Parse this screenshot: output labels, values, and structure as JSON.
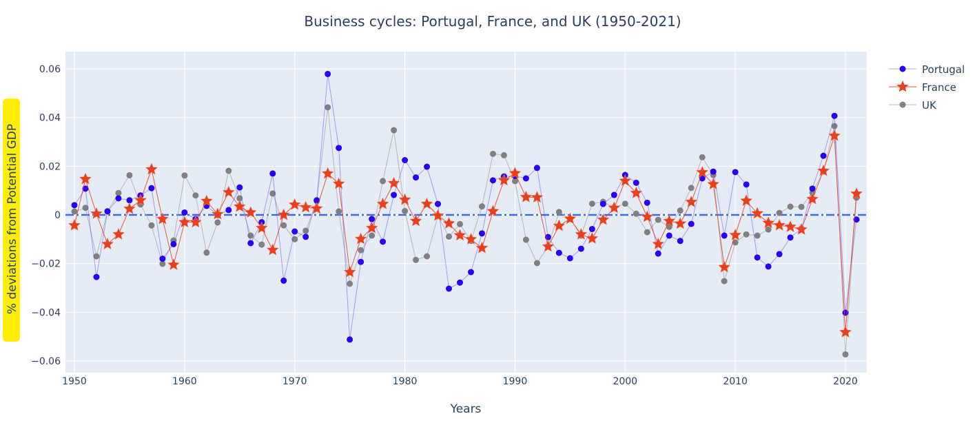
{
  "chart_data": {
    "type": "line",
    "title": "Business cycles: Portugal, France, and UK (1950-2021)",
    "xlabel": "Years",
    "ylabel": "% deviations from Potential GDP",
    "xlim": [
      1949.2,
      2021.8
    ],
    "ylim": [
      -0.065,
      0.066
    ],
    "xticks": [
      1950,
      1960,
      1970,
      1980,
      1990,
      2000,
      2010,
      2020
    ],
    "yticks": [
      -0.06,
      -0.04,
      -0.02,
      0,
      0.02,
      0.04,
      0.06
    ],
    "ytick_labels": [
      "−0.06",
      "−0.04",
      "−0.02",
      "0",
      "0.02",
      "0.04",
      "0.06"
    ],
    "grid": true,
    "legend_position": "top-right, outside",
    "reference_line": {
      "y": 0,
      "style": "dash-dot",
      "color": "#4169E1"
    },
    "x_start": 1950,
    "series": [
      {
        "name": "Portugal",
        "marker": "circle",
        "color": "#2a00f5",
        "line_color": "rgba(80,60,255,0.45)",
        "values": [
          0.004,
          0.0108,
          -0.0255,
          0.0015,
          0.0068,
          0.006,
          0.008,
          0.011,
          -0.018,
          -0.012,
          0.001,
          -0.0017,
          0.0037,
          0,
          0.002,
          0.0113,
          -0.0116,
          -0.003,
          0.017,
          -0.027,
          -0.0068,
          -0.009,
          0.006,
          0.0579,
          0.0275,
          -0.0512,
          -0.0193,
          -0.0017,
          -0.011,
          0.0082,
          0.0225,
          0.0154,
          0.0198,
          0.0045,
          -0.0303,
          -0.0278,
          -0.0235,
          -0.0076,
          0.0142,
          0.0158,
          0.016,
          0.015,
          0.0193,
          -0.0091,
          -0.0156,
          -0.0178,
          -0.0139,
          -0.0058,
          0.0045,
          0.0082,
          0.0164,
          0.0132,
          0.005,
          -0.0159,
          -0.0085,
          -0.0107,
          -0.0037,
          0.015,
          0.0178,
          -0.0085,
          0.0176,
          0.0125,
          -0.0175,
          -0.0212,
          -0.0161,
          -0.0093,
          -0.0057,
          0.0108,
          0.0243,
          0.0407,
          -0.0402,
          -0.0019
        ]
      },
      {
        "name": "France",
        "marker": "star",
        "color": "#e8401c",
        "line_color": "rgba(232,64,28,0.85)",
        "values": [
          -0.0043,
          0.0147,
          0.0005,
          -0.012,
          -0.008,
          0.0025,
          0.006,
          0.0187,
          -0.0017,
          -0.0205,
          -0.003,
          -0.003,
          0.0057,
          0.0003,
          0.0093,
          0.0034,
          0.001,
          -0.0054,
          -0.0144,
          0,
          0.0042,
          0.0031,
          0.0026,
          0.017,
          0.0128,
          -0.0235,
          -0.0099,
          -0.0054,
          0.0045,
          0.013,
          0.0062,
          -0.0025,
          0.0045,
          -0.0003,
          -0.0035,
          -0.0084,
          -0.01,
          -0.0136,
          0.0015,
          0.0142,
          0.0171,
          0.0073,
          0.0072,
          -0.013,
          -0.0045,
          -0.0016,
          -0.008,
          -0.0097,
          -0.002,
          0.0029,
          0.014,
          0.009,
          -0.0008,
          -0.012,
          -0.0025,
          -0.0036,
          0.0053,
          0.0175,
          0.0126,
          -0.0215,
          -0.0083,
          0.0058,
          0.0006,
          -0.0033,
          -0.0043,
          -0.0049,
          -0.006,
          0.0065,
          0.0181,
          0.0325,
          -0.0482,
          0.0087
        ]
      },
      {
        "name": "UK",
        "marker": "circle",
        "color": "#808080",
        "line_color": "rgba(170,170,170,0.8)",
        "values": [
          0.0014,
          0.0029,
          -0.017,
          0.0014,
          0.009,
          0.0163,
          0.0043,
          -0.0043,
          -0.0201,
          -0.0105,
          0.0162,
          0.008,
          -0.0155,
          -0.0031,
          0.0181,
          0.0068,
          -0.0085,
          -0.0122,
          0.0088,
          -0.0043,
          -0.01,
          -0.0065,
          0.0057,
          0.0442,
          0.0014,
          -0.0283,
          -0.0145,
          -0.0085,
          0.0139,
          0.0348,
          0.0016,
          -0.0185,
          -0.017,
          -0.0005,
          -0.0089,
          -0.0038,
          -0.0107,
          0.0035,
          0.0251,
          0.0245,
          0.0139,
          -0.0102,
          -0.0198,
          -0.013,
          0.0012,
          -0.0016,
          -0.0085,
          0.0046,
          0.0054,
          0.003,
          0.0046,
          0.0005,
          -0.0071,
          -0.002,
          -0.0049,
          0.0018,
          0.0111,
          0.0237,
          0.0164,
          -0.0272,
          -0.0113,
          -0.008,
          -0.0085,
          -0.006,
          0.0008,
          0.0034,
          0.0033,
          0.0092,
          0.0178,
          0.0365,
          -0.0573,
          0.0071
        ]
      }
    ]
  }
}
